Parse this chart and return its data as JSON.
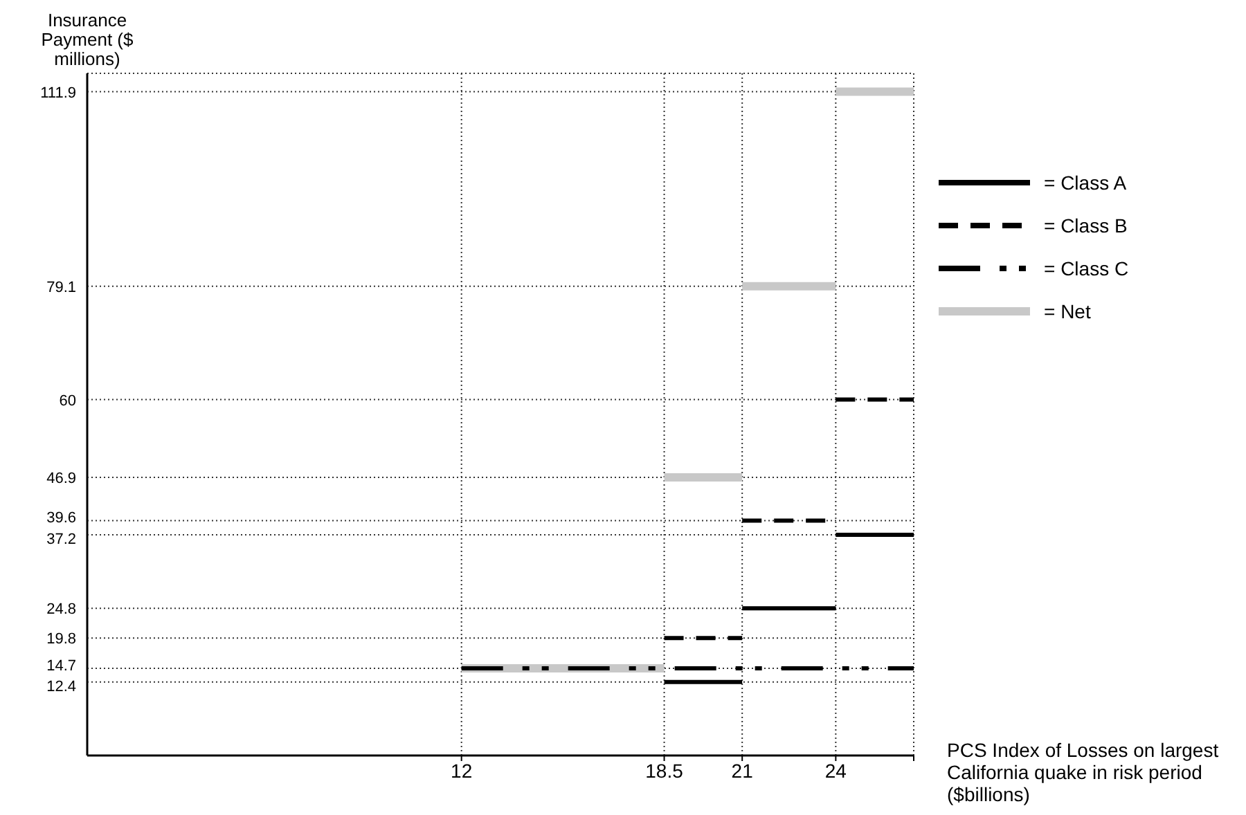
{
  "chart_data": {
    "type": "line",
    "ylabel": "Insurance Payment ($ millions)",
    "xlabel": "PCS Index of Losses on largest California quake in risk period ($billions)",
    "xlim": [
      0,
      26.5
    ],
    "xticks": [
      12,
      18.5,
      21,
      24,
      {
        "value": 26.5,
        "label": null
      }
    ],
    "ylim": [
      0,
      115
    ],
    "yticks": [
      12.4,
      14.7,
      19.8,
      24.8,
      37.2,
      39.6,
      46.9,
      60,
      79.1,
      111.9
    ],
    "grid": true,
    "legend": "top right",
    "marker": "none",
    "series": [
      {
        "name": "= Net",
        "color": "#c8c8c8",
        "line_style": "solid",
        "x": [
          12,
          18.5,
          null,
          18.5,
          21,
          null,
          21,
          24,
          null,
          24,
          26.5
        ],
        "values": [
          14.7,
          14.7,
          null,
          46.9,
          46.9,
          null,
          79.1,
          79.1,
          null,
          111.9,
          111.9
        ]
      },
      {
        "name": "= Class A",
        "color": "#000000",
        "line_style": "solid",
        "x": [
          18.5,
          21,
          null,
          21,
          24,
          null,
          24,
          26.5
        ],
        "values": [
          12.4,
          12.4,
          null,
          24.8,
          24.8,
          null,
          37.2,
          37.2
        ]
      },
      {
        "name": "= Class B",
        "color": "#000000",
        "line_style": "dashed",
        "x": [
          18.5,
          21,
          null,
          21,
          24,
          null,
          24,
          26.5
        ],
        "values": [
          19.8,
          19.8,
          null,
          39.6,
          39.6,
          null,
          60,
          60
        ]
      },
      {
        "name": "= Class C",
        "color": "#000000",
        "line_style": "dashdotdot",
        "x": [
          12,
          26.5
        ],
        "values": [
          14.7,
          14.7
        ]
      }
    ]
  }
}
